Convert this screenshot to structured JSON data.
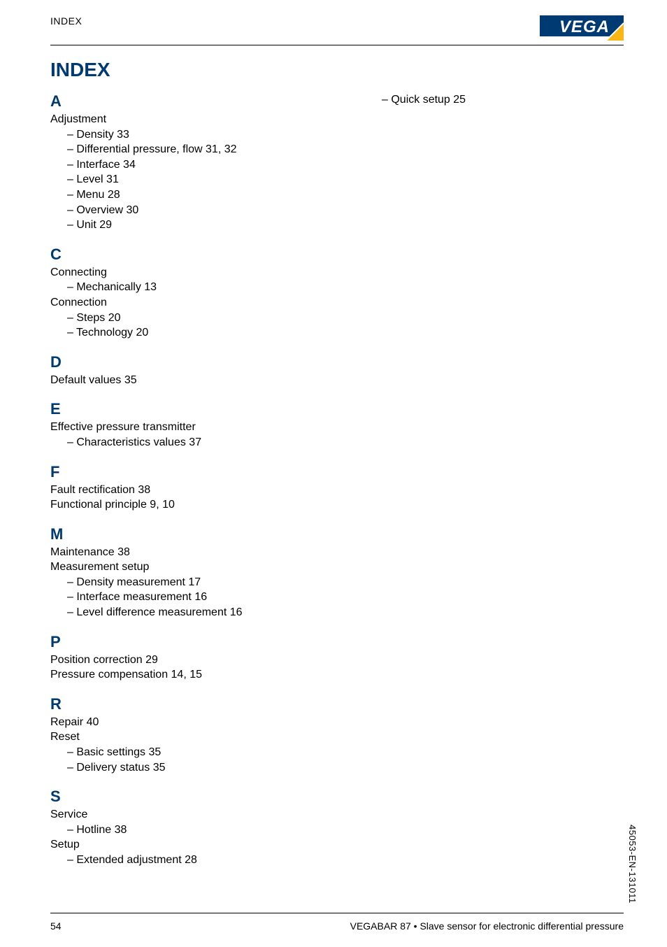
{
  "header": {
    "label": "INDEX"
  },
  "logo": {
    "bg": "#003a72",
    "triangle_fill": "#fbb615",
    "triangle_outline": "#ffffff",
    "text": "VEGA",
    "text_color": "#ffffff"
  },
  "title": "INDEX",
  "left_col": [
    {
      "type": "letter",
      "text": "A"
    },
    {
      "type": "entry",
      "text": "Adjustment"
    },
    {
      "type": "sub",
      "text": "– Density  33"
    },
    {
      "type": "sub",
      "text": "– Differential pressure, flow  31, 32"
    },
    {
      "type": "sub",
      "text": "– Interface  34"
    },
    {
      "type": "sub",
      "text": "– Level  31"
    },
    {
      "type": "sub",
      "text": "– Menu  28"
    },
    {
      "type": "sub",
      "text": "– Overview  30"
    },
    {
      "type": "sub",
      "text": "– Unit  29"
    },
    {
      "type": "letter",
      "text": "C"
    },
    {
      "type": "entry",
      "text": "Connecting"
    },
    {
      "type": "sub",
      "text": "– Mechanically  13"
    },
    {
      "type": "entry",
      "text": "Connection"
    },
    {
      "type": "sub",
      "text": "– Steps  20"
    },
    {
      "type": "sub",
      "text": "– Technology  20"
    },
    {
      "type": "letter",
      "text": "D"
    },
    {
      "type": "entry",
      "text": "Default values  35"
    },
    {
      "type": "letter",
      "text": "E"
    },
    {
      "type": "entry",
      "text": "Effective pressure transmitter"
    },
    {
      "type": "sub",
      "text": "– Characteristics values  37"
    },
    {
      "type": "letter",
      "text": "F"
    },
    {
      "type": "entry",
      "text": "Fault rectification  38"
    },
    {
      "type": "entry",
      "text": "Functional principle  9, 10"
    },
    {
      "type": "letter",
      "text": "M"
    },
    {
      "type": "entry",
      "text": "Maintenance  38"
    },
    {
      "type": "entry",
      "text": "Measurement setup"
    },
    {
      "type": "sub",
      "text": "– Density measurement  17"
    },
    {
      "type": "sub",
      "text": "– Interface measurement  16"
    },
    {
      "type": "sub",
      "text": "– Level difference measurement  16"
    },
    {
      "type": "letter",
      "text": "P"
    },
    {
      "type": "entry",
      "text": "Position correction  29"
    },
    {
      "type": "entry",
      "text": "Pressure compensation  14, 15"
    },
    {
      "type": "letter",
      "text": "R"
    },
    {
      "type": "entry",
      "text": "Repair  40"
    },
    {
      "type": "entry",
      "text": "Reset"
    },
    {
      "type": "sub",
      "text": "– Basic settings  35"
    },
    {
      "type": "sub",
      "text": "– Delivery status  35"
    },
    {
      "type": "letter",
      "text": "S"
    },
    {
      "type": "entry",
      "text": "Service"
    },
    {
      "type": "sub",
      "text": "– Hotline  38"
    },
    {
      "type": "entry",
      "text": "Setup"
    },
    {
      "type": "sub",
      "text": "– Extended adjustment  28"
    }
  ],
  "right_col": [
    {
      "type": "sub",
      "text": "– Quick setup  25"
    }
  ],
  "footer": {
    "page": "54",
    "product": "VEGABAR 87 • Slave sensor for electronic differential pressure"
  },
  "side_text": "45053-EN-131011"
}
